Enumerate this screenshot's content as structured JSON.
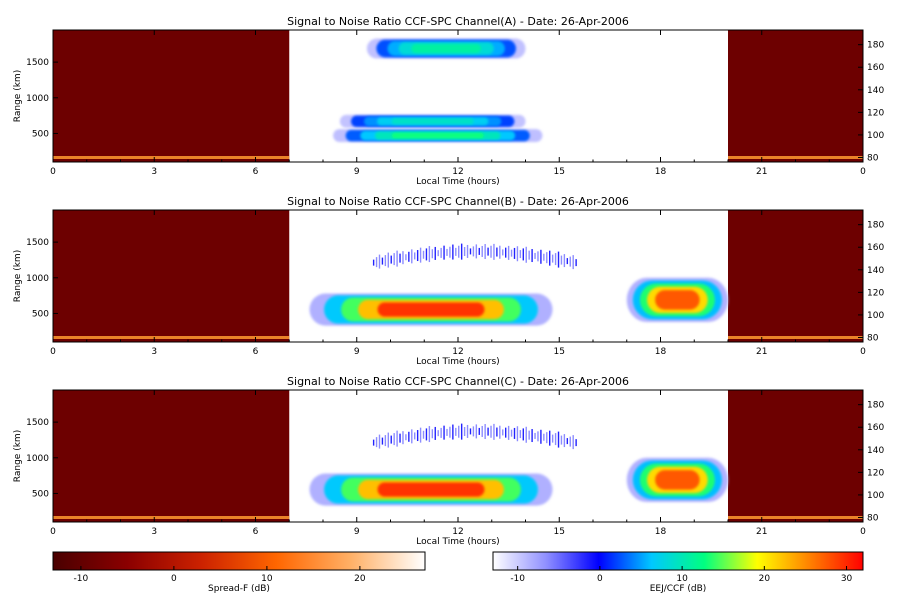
{
  "chart_data": [
    {
      "type": "heatmap",
      "title": "Signal to Noise Ratio CCF-SPC Channel(A) - Date: 26-Apr-2006",
      "xlabel": "Local Time (hours)",
      "ylabel": "Range (km)",
      "xlim": [
        0,
        24
      ],
      "ylim": [
        100,
        1950
      ],
      "xticks": [
        "0",
        "3",
        "6",
        "9",
        "12",
        "15",
        "18",
        "21",
        "0"
      ],
      "yticks": [
        "500",
        "1000",
        "1500"
      ],
      "y2ticks": [
        "80",
        "100",
        "120",
        "140",
        "160",
        "180"
      ],
      "night_segments_hours": [
        [
          0,
          7
        ],
        [
          20,
          24
        ]
      ],
      "echoes": [
        {
          "t_start": 9.3,
          "t_end": 14.0,
          "r_low": 1550,
          "r_high": 1830,
          "snr_peak_db": 12
        },
        {
          "t_start": 8.5,
          "t_end": 14.0,
          "r_low": 580,
          "r_high": 760,
          "snr_peak_db": 10
        },
        {
          "t_start": 8.3,
          "t_end": 14.5,
          "r_low": 380,
          "r_high": 560,
          "snr_peak_db": 14
        }
      ]
    },
    {
      "type": "heatmap",
      "title": "Signal to Noise Ratio CCF-SPC Channel(B) - Date: 26-Apr-2006",
      "xlabel": "Local Time (hours)",
      "ylabel": "Range (km)",
      "xlim": [
        0,
        24
      ],
      "ylim": [
        100,
        1950
      ],
      "xticks": [
        "0",
        "3",
        "6",
        "9",
        "12",
        "15",
        "18",
        "21",
        "0"
      ],
      "yticks": [
        "500",
        "1000",
        "1500"
      ],
      "y2ticks": [
        "80",
        "100",
        "120",
        "140",
        "160",
        "180"
      ],
      "night_segments_hours": [
        [
          0,
          7
        ],
        [
          20,
          24
        ]
      ],
      "echoes": [
        {
          "t_start": 9.5,
          "t_end": 15.5,
          "r_low": 1100,
          "r_high": 1550,
          "snr_peak_db": -2
        },
        {
          "t_start": 7.6,
          "t_end": 14.8,
          "r_low": 330,
          "r_high": 780,
          "snr_peak_db": 32
        },
        {
          "t_start": 17.0,
          "t_end": 20.0,
          "r_low": 380,
          "r_high": 1000,
          "snr_peak_db": 30
        }
      ]
    },
    {
      "type": "heatmap",
      "title": "Signal to Noise Ratio CCF-SPC Channel(C) - Date: 26-Apr-2006",
      "xlabel": "Local Time (hours)",
      "ylabel": "Range (km)",
      "xlim": [
        0,
        24
      ],
      "ylim": [
        100,
        1950
      ],
      "xticks": [
        "0",
        "3",
        "6",
        "9",
        "12",
        "15",
        "18",
        "21",
        "0"
      ],
      "yticks": [
        "500",
        "1000",
        "1500"
      ],
      "y2ticks": [
        "80",
        "100",
        "120",
        "140",
        "160",
        "180"
      ],
      "night_segments_hours": [
        [
          0,
          7
        ],
        [
          20,
          24
        ]
      ],
      "echoes": [
        {
          "t_start": 9.5,
          "t_end": 15.5,
          "r_low": 1100,
          "r_high": 1550,
          "snr_peak_db": -2
        },
        {
          "t_start": 7.6,
          "t_end": 14.8,
          "r_low": 330,
          "r_high": 780,
          "snr_peak_db": 32
        },
        {
          "t_start": 17.0,
          "t_end": 20.0,
          "r_low": 380,
          "r_high": 1000,
          "snr_peak_db": 30
        }
      ]
    }
  ],
  "colorbars": [
    {
      "label": "Spread-F (dB)",
      "range": [
        -13,
        27
      ],
      "ticks": [
        "-10",
        "0",
        "10",
        "20"
      ],
      "colors": [
        "#4a0000",
        "#8b0000",
        "#cc2200",
        "#ff6600",
        "#ffb066",
        "#ffffff"
      ]
    },
    {
      "label": "EEJ/CCF (dB)",
      "range": [
        -13,
        32
      ],
      "ticks": [
        "-10",
        "0",
        "10",
        "20",
        "30"
      ],
      "colors": [
        "#ffffff",
        "#9090ff",
        "#0000ff",
        "#00c8ff",
        "#00ff80",
        "#ffff00",
        "#ff8000",
        "#ff0000"
      ]
    }
  ]
}
